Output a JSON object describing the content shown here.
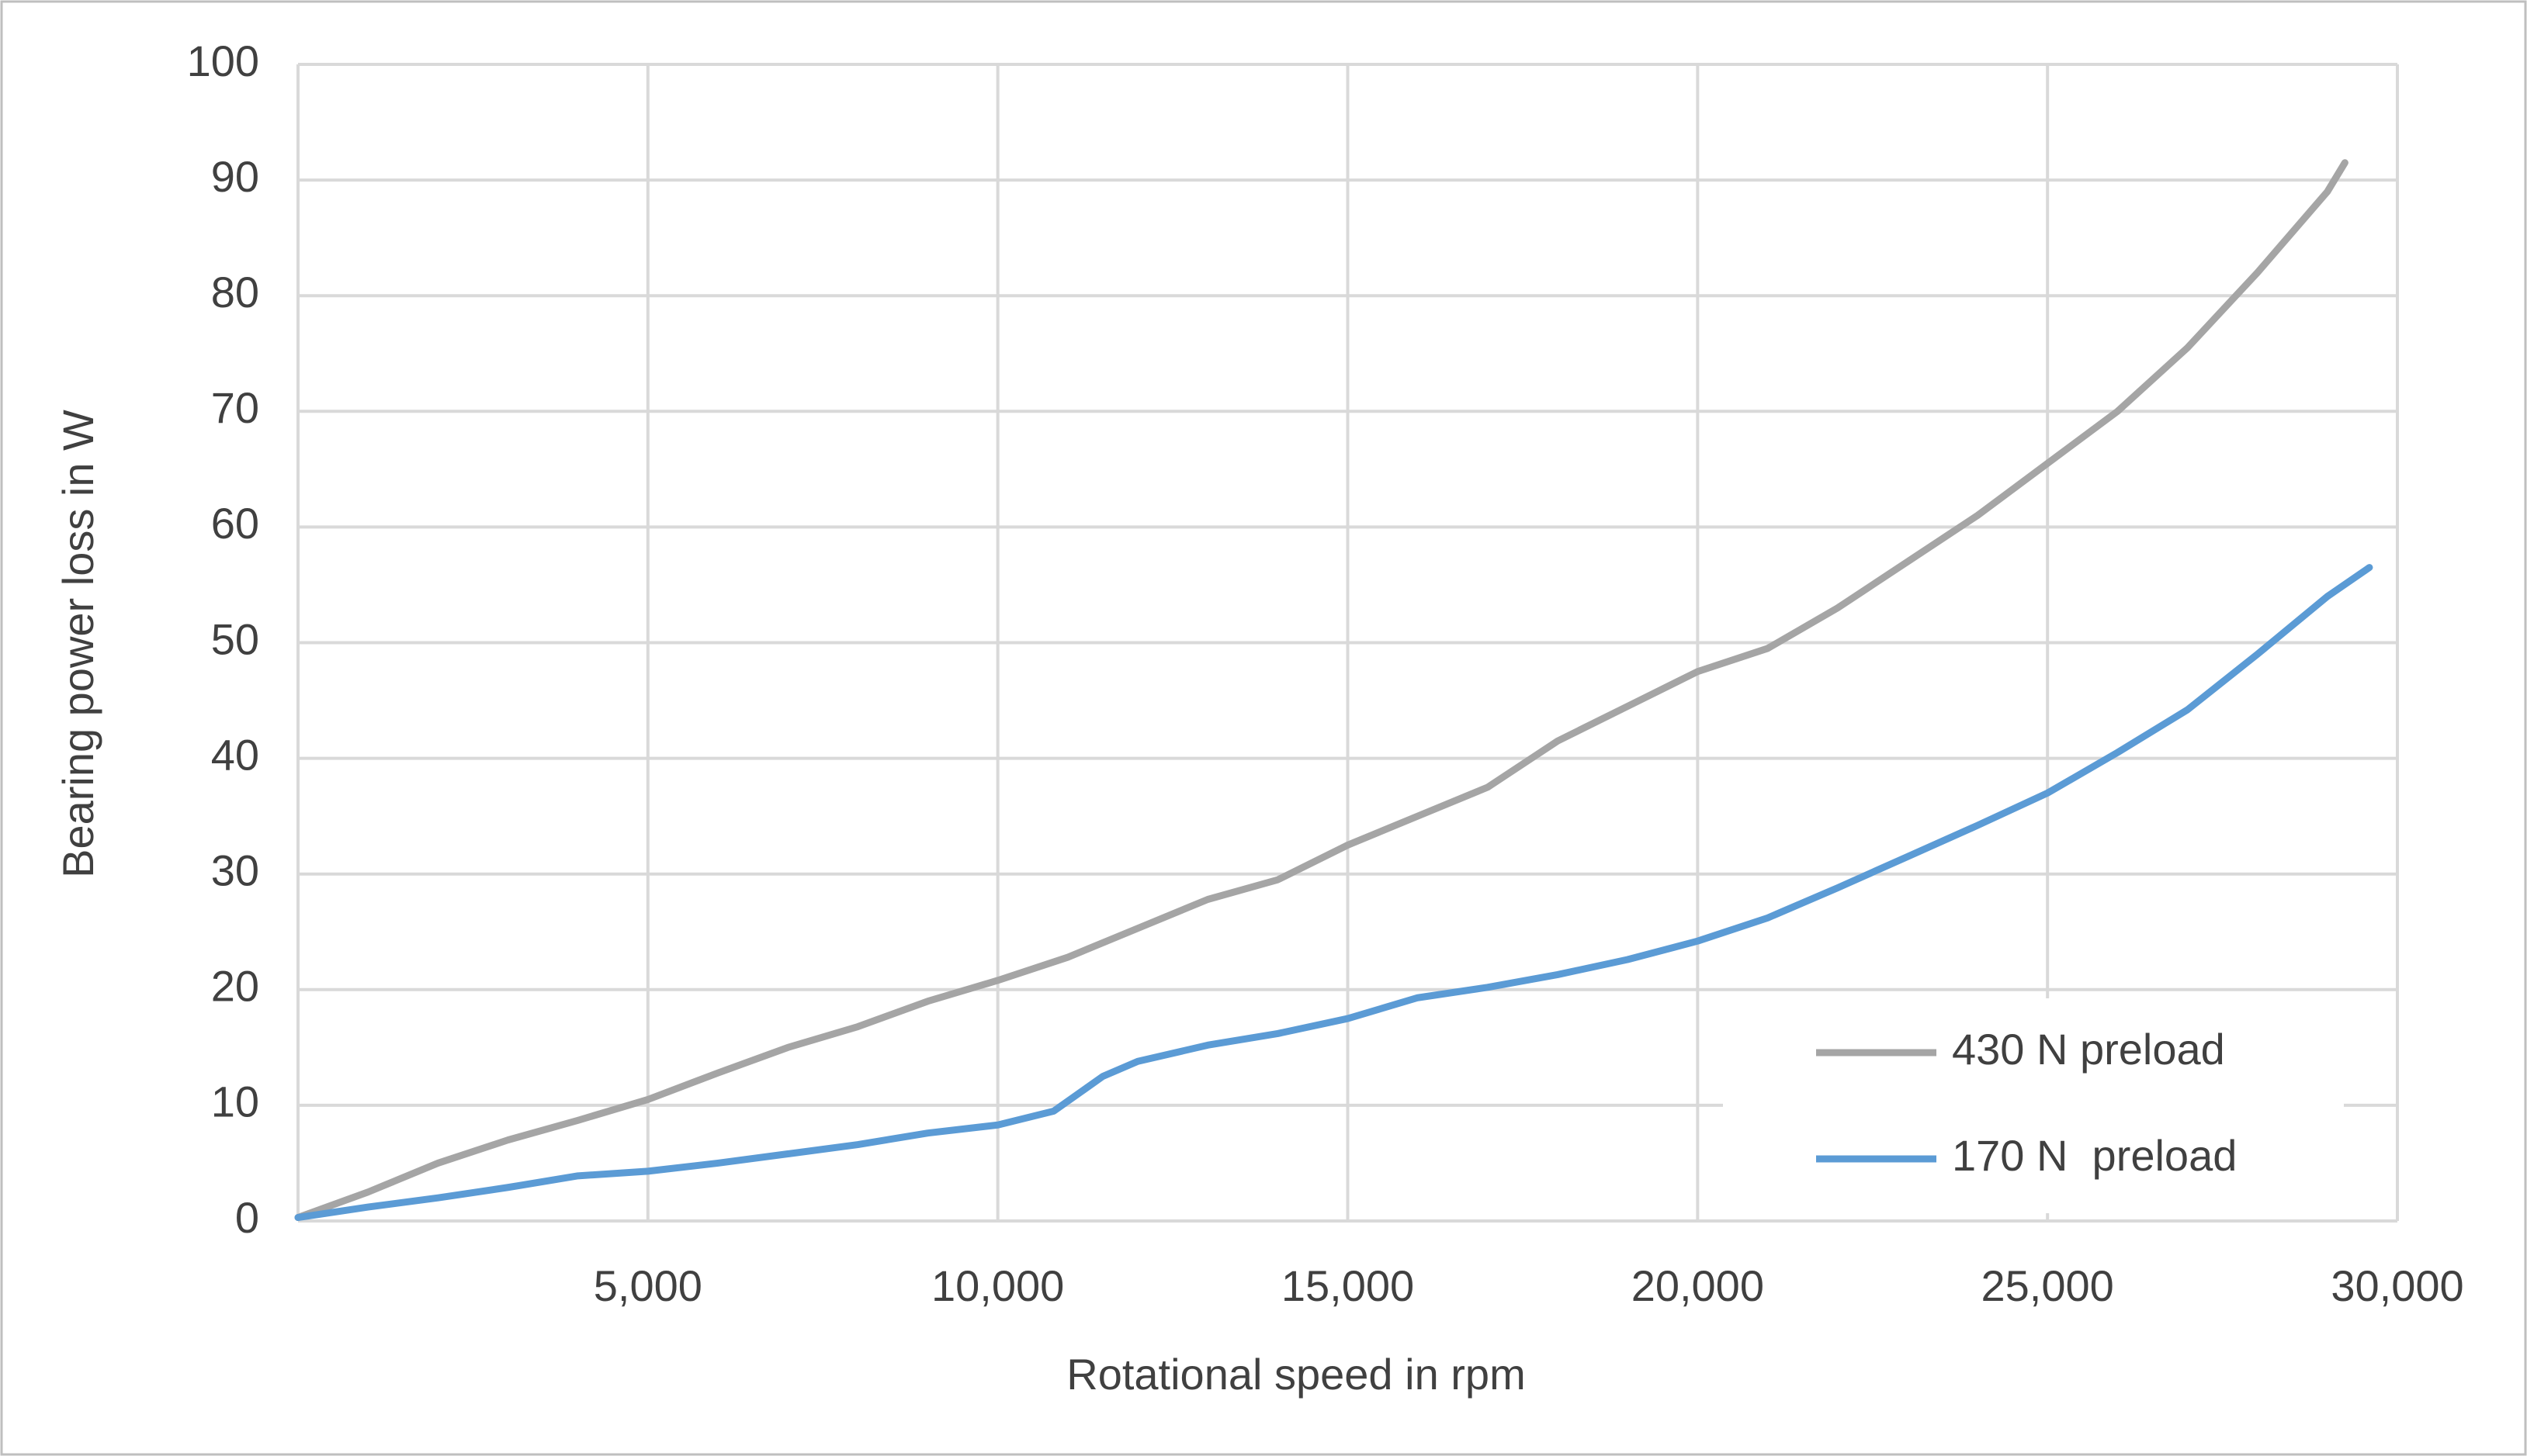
{
  "chart_data": {
    "type": "line",
    "x_label": "Rotational speed in rpm",
    "y_label": "Bearing power loss in W",
    "xlim": [
      0,
      30000
    ],
    "xticks": [
      {
        "value": 5000,
        "label": "5,000"
      },
      {
        "value": 10000,
        "label": "10,000"
      },
      {
        "value": 15000,
        "label": "15,000"
      },
      {
        "value": 20000,
        "label": "20,000"
      },
      {
        "value": 25000,
        "label": "25,000"
      },
      {
        "value": 30000,
        "label": "30,000"
      }
    ],
    "ylim": [
      0,
      100
    ],
    "yticks": [
      0,
      10,
      20,
      30,
      40,
      50,
      60,
      70,
      80,
      90,
      100
    ],
    "grid": true,
    "legend": "lower right",
    "series": [
      {
        "name": "430 N preload",
        "color": "#a5a5a5",
        "x": [
          0,
          1000,
          2000,
          3000,
          4000,
          5000,
          6000,
          7000,
          8000,
          9000,
          10000,
          11000,
          12000,
          13000,
          14000,
          15000,
          16000,
          17000,
          18000,
          19000,
          20000,
          21000,
          22000,
          23000,
          24000,
          25000,
          26000,
          27000,
          28000,
          29000,
          29250
        ],
        "values": [
          0.3,
          2.5,
          5,
          7,
          8.7,
          10.5,
          12.8,
          15,
          16.8,
          19,
          20.8,
          22.8,
          25.3,
          27.8,
          29.5,
          32.5,
          35,
          37.5,
          41.5,
          44.5,
          47.5,
          49.5,
          53,
          57,
          61,
          65.5,
          70,
          75.5,
          82,
          89,
          91.5
        ]
      },
      {
        "name": "170 N  preload",
        "color": "#5b9bd5",
        "x": [
          0,
          1000,
          2000,
          3000,
          4000,
          5000,
          6000,
          7000,
          8000,
          9000,
          10000,
          10800,
          11500,
          12000,
          13000,
          14000,
          15000,
          16000,
          17000,
          18000,
          19000,
          20000,
          21000,
          22000,
          23000,
          24000,
          25000,
          26000,
          27000,
          28000,
          29000,
          29600
        ],
        "values": [
          0.3,
          1.2,
          2,
          2.9,
          3.9,
          4.3,
          5,
          5.8,
          6.6,
          7.6,
          8.3,
          9.5,
          12.5,
          13.8,
          15.2,
          16.2,
          17.5,
          19.3,
          20.2,
          21.3,
          22.6,
          24.2,
          26.2,
          28.8,
          31.5,
          34.2,
          37,
          40.5,
          44.2,
          49,
          54,
          56.5
        ]
      }
    ]
  }
}
